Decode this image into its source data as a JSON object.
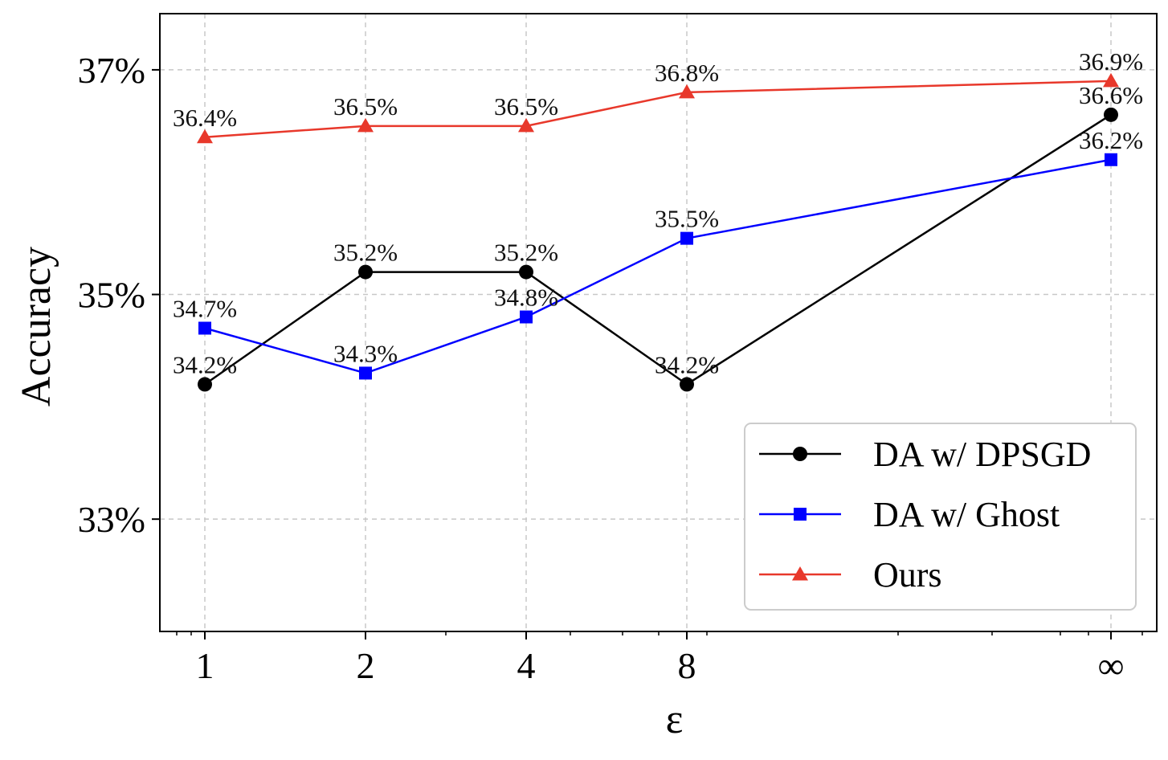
{
  "chart_data": {
    "type": "line",
    "title": "",
    "xlabel": "ε",
    "ylabel": "Accuracy",
    "categories": [
      "1",
      "2",
      "4",
      "8",
      "∞"
    ],
    "y_ticks": [
      "33%",
      "35%",
      "37%"
    ],
    "ylim": [
      32,
      37.5
    ],
    "y_tick_values": [
      33,
      35,
      37
    ],
    "grid": true,
    "legend_position": "bottom-right",
    "series": [
      {
        "name": "DA w/ DPSGD",
        "color": "#000000",
        "marker": "circle",
        "values": [
          34.2,
          35.2,
          35.2,
          34.2,
          36.6
        ],
        "labels": [
          "34.2%",
          "35.2%",
          "35.2%",
          "34.2%",
          "36.6%"
        ]
      },
      {
        "name": "DA w/ Ghost",
        "color": "#0000ff",
        "marker": "square",
        "values": [
          34.7,
          34.3,
          34.8,
          35.5,
          36.2
        ],
        "labels": [
          "34.7%",
          "34.3%",
          "34.8%",
          "35.5%",
          "36.2%"
        ]
      },
      {
        "name": "Ours",
        "color": "#e8382b",
        "marker": "triangle",
        "values": [
          36.4,
          36.5,
          36.5,
          36.8,
          36.9
        ],
        "labels": [
          "36.4%",
          "36.5%",
          "36.5%",
          "36.8%",
          "36.9%"
        ]
      }
    ]
  }
}
